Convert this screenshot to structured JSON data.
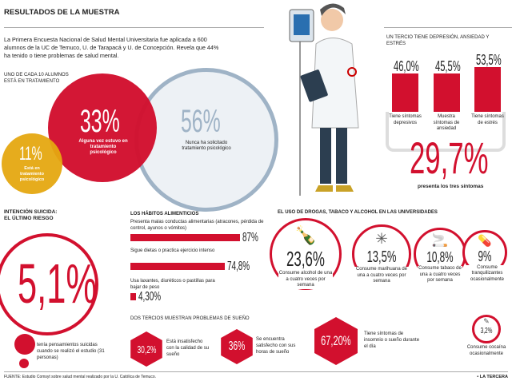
{
  "title": "RESULTADOS DE LA MUESTRA",
  "intro": "La Primera Encuesta Nacional de Salud Mental Universitaria fue aplicada a 600 alumnos de la UC de Temuco, U. de Tarapacá y U. de Concepción. Revela que 44% ha tenido o tiene problemas de salud mental.",
  "treatment": {
    "heading": "UNO DE CADA 10 ALUMNOS ESTÁ EN TRATAMIENTO",
    "red": {
      "value": "33%",
      "label": "Alguna vez estuvo en tratamiento psicológico"
    },
    "blue": {
      "value": "56%",
      "label": "Nunca ha solicitado tratamiento psicológico"
    },
    "yellow": {
      "value": "11%",
      "label": "Está en tratamiento psicológico"
    }
  },
  "symptoms": {
    "heading": "UN TERCIO TIENE DEPRESIÓN, ANSIEDAD Y ESTRÉS",
    "total": "29,7%",
    "total_label": "presenta los tres síntomas"
  },
  "suicide": {
    "heading1": "INTENCIÓN SUICIDA:",
    "heading2": "EL ÚLTIMO RIESGO",
    "value": "5,1%",
    "label": "tenía pensamientos suicidas cuando se realizó el estudio (31 personas)"
  },
  "eating": {
    "heading": "LOS HÁBITOS ALIMENTICIOS"
  },
  "drugs": {
    "heading": "EL USO DE DROGAS, TABACO Y ALCOHOL EN LAS UNIVERSIDADES",
    "items": [
      {
        "value": "23,6%",
        "label": "Consume alcohol de una a cuatro veces por semana",
        "icon": "bottles-icon"
      },
      {
        "value": "13,5%",
        "label": "Consume marihuana de una a cuatro veces por semana",
        "icon": "cannabis-leaf-icon"
      },
      {
        "value": "10,8%",
        "label": "Consume tabaco de una a cuatro veces por semana",
        "icon": "ashtray-icon"
      },
      {
        "value": "9%",
        "label": "Consume tranquilizantes ocasionalmente",
        "icon": "pills-icon"
      },
      {
        "value": "3,2%",
        "label": "Consume cocaína ocasionalmente",
        "icon": "cocaine-icon"
      }
    ]
  },
  "sleep": {
    "heading": "DOS TERCIOS MUESTRAN PROBLEMAS DE SUEÑO",
    "items": [
      {
        "value": "30,2%",
        "label": "Está insatisfecho con la calidad de su sueño"
      },
      {
        "value": "36%",
        "label": "Se encuentra satisfecho con sus horas de sueño"
      },
      {
        "value": "67,20%",
        "label": "Tiene síntomas de insomnio o sueño durante el día"
      }
    ]
  },
  "footer": {
    "source": "FUENTE: Estudio Comsyt sobre salud mental realizado por la U. Católica de Temuco.",
    "brand": "• LA TERCERA"
  },
  "colors": {
    "red": "#d2102e",
    "blue": "#9fb3c6",
    "yellow": "#e5a811"
  },
  "chart_data": [
    {
      "type": "bar",
      "title": "UN TERCIO TIENE DEPRESIÓN, ANSIEDAD Y ESTRÉS",
      "categories": [
        "Tiene síntomas depresivos",
        "Muestra síntomas de ansiedad",
        "Tiene síntomas de estrés"
      ],
      "values": [
        46.0,
        45.5,
        53.5
      ],
      "labels": [
        "46,0%",
        "45,5%",
        "53,5%"
      ],
      "ylim": [
        0,
        100
      ]
    },
    {
      "type": "bar",
      "orientation": "horizontal",
      "title": "LOS HÁBITOS ALIMENTICIOS",
      "categories": [
        "Presenta malas conductas alimentarias (atracones, pérdida de control, ayunos o vómitos)",
        "Sigue dietas o practica ejercicio intenso",
        "Usa laxantes, diuréticos o pastillas para bajar de peso"
      ],
      "values": [
        87,
        74.8,
        4.3
      ],
      "labels": [
        "87%",
        "74,8%",
        "4,30%"
      ],
      "xlim": [
        0,
        100
      ]
    }
  ]
}
